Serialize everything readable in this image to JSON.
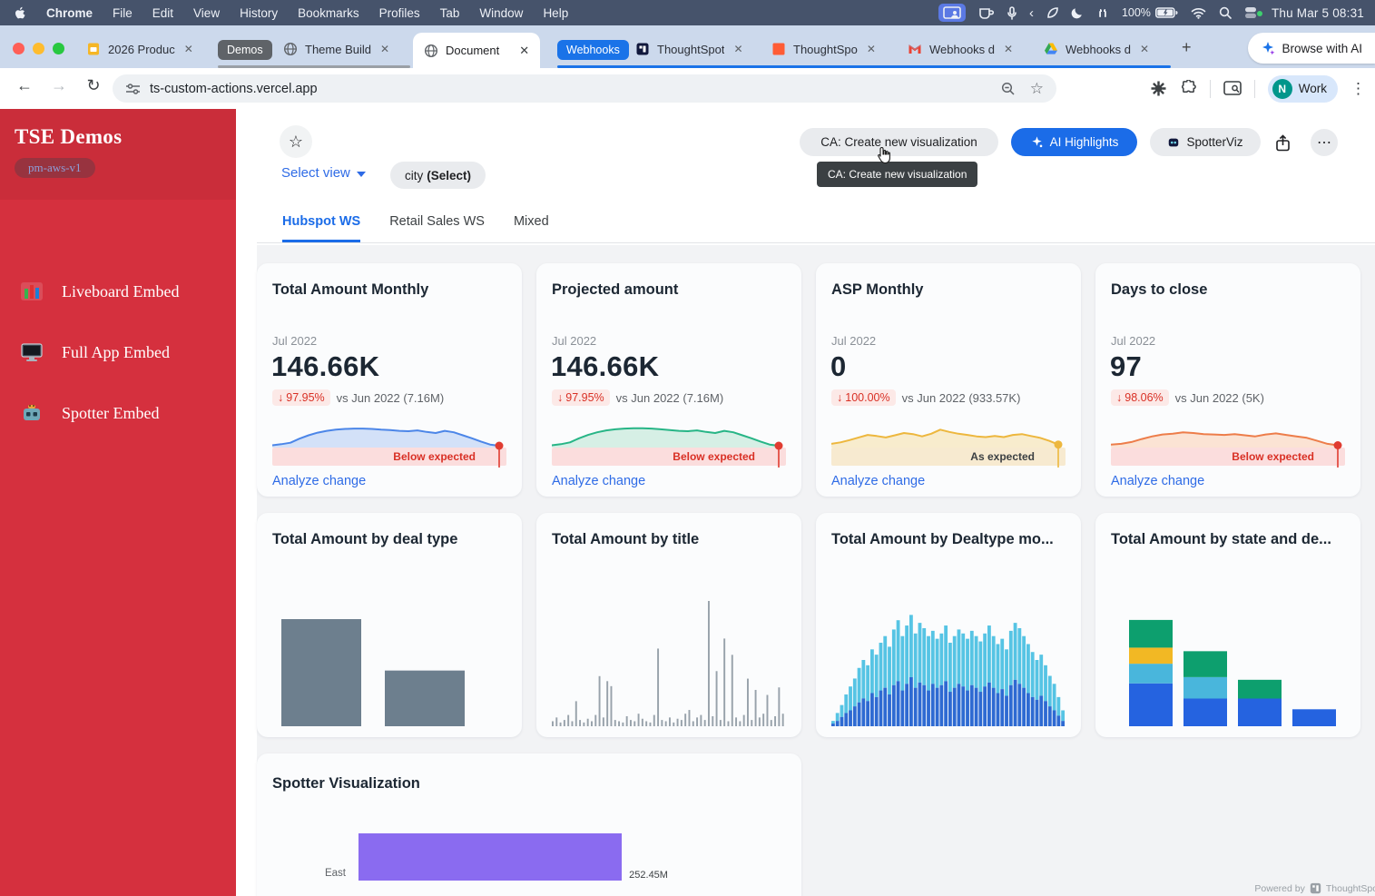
{
  "icons": {
    "close": "✕",
    "plus": "+",
    "back": "←",
    "forward": "→",
    "refresh": "↻",
    "star": "☆",
    "more_v": "⋮",
    "more_h": "⋯",
    "down_arrow": "↓",
    "chevron_left": "‹"
  },
  "colors": {
    "sidebar_red": "#d5303e",
    "accent_blue": "#1a73e8",
    "link_blue": "#2e6be6",
    "negative_red": "#d93025",
    "tab_group_gray": "#5f6368",
    "ai_button_blue": "#1b6ce8",
    "spotter_purple": "#8a6bf0"
  },
  "menu_bar": {
    "items": [
      "Chrome",
      "File",
      "Edit",
      "View",
      "History",
      "Bookmarks",
      "Profiles",
      "Tab",
      "Window",
      "Help"
    ],
    "battery": "100%",
    "clock": "Thu Mar 5  08:31"
  },
  "tab_bar": {
    "groups": [
      {
        "label": "Demos"
      },
      {
        "label": "Webhooks"
      }
    ],
    "tabs": [
      {
        "label": "2026 Produc"
      },
      {
        "label": "Theme Build"
      },
      {
        "label": "Document"
      },
      {
        "label": "ThoughtSpot"
      },
      {
        "label": "ThoughtSpo"
      },
      {
        "label": "Webhooks d"
      },
      {
        "label": "Webhooks d"
      }
    ],
    "new_tab": "+",
    "browse_ai": "Browse with AI"
  },
  "address_bar": {
    "url": "ts-custom-actions.vercel.app",
    "profile_label": "Work",
    "profile_initial": "N"
  },
  "sidebar": {
    "title": "TSE Demos",
    "badge": "pm-aws-v1",
    "items": [
      {
        "label": "Liveboard Embed"
      },
      {
        "label": "Full App Embed"
      },
      {
        "label": "Spotter Embed"
      }
    ]
  },
  "toolbar": {
    "select_view": "Select view",
    "filter_name": "city",
    "filter_value": "(Select)",
    "ca_button": "CA: Create new visualization",
    "ca_tooltip": "CA: Create new visualization",
    "ai_highlights": "AI Highlights",
    "spotterviz": "SpotterViz"
  },
  "view_tabs": [
    {
      "label": "Hubspot WS"
    },
    {
      "label": "Retail Sales WS"
    },
    {
      "label": "Mixed"
    }
  ],
  "kpi_cards": [
    {
      "title": "Total Amount Monthly",
      "period": "Jul 2022",
      "value": "146.66K",
      "change": "97.95%",
      "vs": "vs Jun 2022 (7.16M)",
      "link": "Analyze change"
    },
    {
      "title": "Projected amount",
      "period": "Jul 2022",
      "value": "146.66K",
      "change": "97.95%",
      "vs": "vs Jun 2022 (7.16M)",
      "link": "Analyze change"
    },
    {
      "title": "ASP Monthly",
      "period": "Jul 2022",
      "value": "0",
      "change": "100.00%",
      "vs": "vs Jun 2022 (933.57K)",
      "link": "Analyze change"
    },
    {
      "title": "Days to close",
      "period": "Jul 2022",
      "value": "97",
      "change": "98.06%",
      "vs": "vs Jun 2022 (5K)",
      "link": "Analyze change"
    }
  ],
  "chart_cards": [
    {
      "title": "Total Amount by deal type"
    },
    {
      "title": "Total Amount by title"
    },
    {
      "title": "Total Amount by Dealtype mo..."
    },
    {
      "title": "Total Amount by state and de..."
    }
  ],
  "spotter_card": {
    "title": "Spotter Visualization",
    "bar_label": "East",
    "bar_value": "252.45M"
  },
  "footer": {
    "powered_by": "Powered by",
    "brand": "ThoughtSpot"
  },
  "chart_data": [
    {
      "id": "spark-0",
      "type": "area",
      "title": "Total Amount Monthly",
      "latest": {
        "label": "Jul 2022",
        "value": "146.66K"
      },
      "prev": {
        "label": "Jun 2022",
        "value": "7.16M"
      },
      "change_pct": -97.95,
      "line_color": "#4c86e8",
      "fill_color": "#d3e1f8",
      "dot_color": "#e03c31",
      "band_height": 20,
      "band": {
        "label": "Below expected",
        "color": "#fbdddd",
        "text_color": "#d93025"
      },
      "points": [
        6,
        9,
        13,
        24,
        33,
        40,
        45,
        48,
        50,
        51,
        51,
        50,
        48,
        47,
        45,
        44,
        46,
        42,
        39,
        45,
        41,
        33,
        25,
        16,
        8,
        5
      ]
    },
    {
      "id": "spark-1",
      "type": "area",
      "title": "Projected amount",
      "latest": {
        "label": "Jul 2022",
        "value": "146.66K"
      },
      "prev": {
        "label": "Jun 2022",
        "value": "7.16M"
      },
      "change_pct": -97.95,
      "line_color": "#27b586",
      "fill_color": "#d6efe5",
      "dot_color": "#e03c31",
      "band_height": 20,
      "band": {
        "label": "Below expected",
        "color": "#fbdddd",
        "text_color": "#d93025"
      },
      "points": [
        6,
        9,
        14,
        25,
        34,
        41,
        46,
        49,
        51,
        52,
        52,
        51,
        49,
        47,
        45,
        44,
        46,
        42,
        39,
        45,
        41,
        33,
        25,
        16,
        8,
        5
      ]
    },
    {
      "id": "spark-2",
      "type": "area",
      "title": "ASP Monthly",
      "latest": {
        "label": "Jul 2022",
        "value": "0"
      },
      "prev": {
        "label": "Jun 2022",
        "value": "933.57K"
      },
      "change_pct": -100.0,
      "line_color": "#edb73e",
      "fill_color": "#f8eccd",
      "dot_color": "#edb73e",
      "band_height": 20,
      "band": {
        "label": "As expected",
        "color": "#f7ead0",
        "text_color": "#3c4043"
      },
      "points": [
        10,
        14,
        20,
        27,
        34,
        31,
        27,
        33,
        39,
        36,
        30,
        37,
        48,
        42,
        37,
        34,
        30,
        28,
        31,
        28,
        34,
        36,
        31,
        26,
        18,
        8
      ]
    },
    {
      "id": "spark-3",
      "type": "area",
      "title": "Days to close",
      "latest": {
        "label": "Jul 2022",
        "value": "97"
      },
      "prev": {
        "label": "Jun 2022",
        "value": "5K"
      },
      "change_pct": -98.06,
      "line_color": "#ed7d4a",
      "fill_color": "#fbe3d4",
      "dot_color": "#e03c31",
      "band_height": 20,
      "band": {
        "label": "Below expected",
        "color": "#fbdddd",
        "text_color": "#d93025"
      },
      "points": [
        8,
        10,
        15,
        23,
        30,
        35,
        37,
        41,
        39,
        36,
        35,
        34,
        36,
        33,
        30,
        35,
        38,
        34,
        30,
        26,
        18,
        10,
        6
      ]
    },
    {
      "id": "bars-dealtype",
      "type": "bar",
      "title": "Total Amount by deal type",
      "categories": [
        "",
        ""
      ],
      "values": [
        100,
        52
      ],
      "bar_color": "#6d7f8e"
    },
    {
      "id": "spikes-title",
      "type": "bar",
      "title": "Total Amount by title",
      "bar_color": "#98a2ab",
      "values": [
        4,
        7,
        3,
        5,
        9,
        4,
        20,
        5,
        3,
        6,
        4,
        9,
        40,
        7,
        36,
        32,
        5,
        4,
        3,
        8,
        5,
        4,
        10,
        6,
        4,
        3,
        9,
        62,
        5,
        4,
        7,
        3,
        6,
        5,
        10,
        13,
        4,
        7,
        9,
        5,
        100,
        8,
        44,
        5,
        70,
        4,
        57,
        7,
        4,
        9,
        38,
        5,
        29,
        7,
        10,
        25,
        5,
        8,
        31,
        10
      ]
    },
    {
      "id": "hist-dealtype-monthly",
      "type": "stacked_hist",
      "title": "Total Amount by Dealtype mo...",
      "colors": {
        "top": "#56c4e4",
        "bottom": "#2e6ad2"
      },
      "totals": [
        4,
        10,
        16,
        24,
        30,
        36,
        44,
        50,
        46,
        58,
        54,
        63,
        68,
        60,
        73,
        80,
        68,
        76,
        84,
        70,
        78,
        74,
        68,
        72,
        66,
        70,
        76,
        63,
        68,
        73,
        70,
        66,
        72,
        68,
        64,
        70,
        76,
        68,
        62,
        66,
        58,
        72,
        78,
        74,
        68,
        62,
        56,
        50,
        54,
        46,
        38,
        32,
        22,
        12
      ],
      "bottoms": [
        2,
        4,
        7,
        10,
        12,
        15,
        18,
        21,
        19,
        25,
        22,
        27,
        29,
        24,
        31,
        34,
        27,
        32,
        37,
        29,
        33,
        31,
        27,
        32,
        29,
        31,
        34,
        26,
        29,
        32,
        30,
        27,
        31,
        29,
        26,
        30,
        33,
        29,
        25,
        28,
        23,
        31,
        35,
        32,
        29,
        25,
        22,
        20,
        23,
        19,
        15,
        12,
        8,
        4
      ]
    },
    {
      "id": "stacked-state",
      "type": "stacked_bars",
      "title": "Total Amount by state and de...",
      "colors": {
        "blue": "#2563e0",
        "cyan": "#49b6dc",
        "yellow": "#f2b824",
        "green": "#0d9f6e"
      },
      "scale_max": 125,
      "bars": [
        [
          {
            "c": "blue",
            "v": 48
          },
          {
            "c": "cyan",
            "v": 22
          },
          {
            "c": "yellow",
            "v": 18
          },
          {
            "c": "green",
            "v": 31
          }
        ],
        [
          {
            "c": "blue",
            "v": 31
          },
          {
            "c": "cyan",
            "v": 24
          },
          {
            "c": "green",
            "v": 29
          }
        ],
        [
          {
            "c": "blue",
            "v": 31
          },
          {
            "c": "green",
            "v": 21
          }
        ],
        [
          {
            "c": "blue",
            "v": 19
          }
        ]
      ]
    },
    {
      "id": "hbar-east",
      "type": "hbar",
      "title": "Spotter Visualization",
      "categories": [
        "East"
      ],
      "values": [
        "252.45M"
      ],
      "width_pct": 62,
      "bar_color": "#8a6bf0"
    }
  ]
}
